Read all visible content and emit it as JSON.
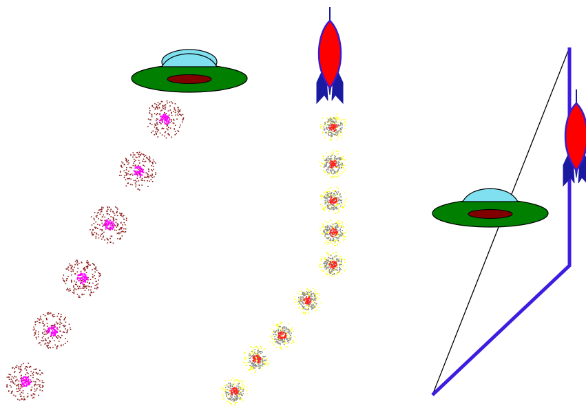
{
  "colors": {
    "background": "#ffffff",
    "ufo_disc": "#007f00",
    "ufo_dome": "#80e0f0",
    "ufo_core": "#800000",
    "rocket_body": "#ff0000",
    "rocket_fins": "#1a1aa0",
    "rocket_outline": "#3a1ad0",
    "ufo_puff_core": "#ff00ff",
    "ufo_puff_specks": "#8b1a1a",
    "rocket_puff_core": "#ff2020",
    "rocket_puff_mid": "#8a8a8a",
    "rocket_puff_outer": "#ffff00",
    "guide_line": "#000000",
    "trajectory_line": "#3d1ee0"
  },
  "icons": {
    "ufo": "flying-saucer-icon",
    "rocket": "rocket-icon",
    "ufo_exhaust": "ufo-exhaust-puff",
    "rocket_exhaust": "rocket-exhaust-puff"
  }
}
